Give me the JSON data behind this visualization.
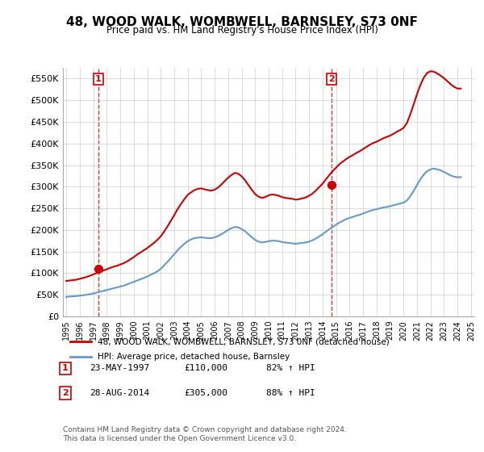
{
  "title": "48, WOOD WALK, WOMBWELL, BARNSLEY, S73 0NF",
  "subtitle": "Price paid vs. HM Land Registry's House Price Index (HPI)",
  "legend_line1": "48, WOOD WALK, WOMBWELL, BARNSLEY, S73 0NF (detached house)",
  "legend_line2": "HPI: Average price, detached house, Barnsley",
  "transaction1_label": "1",
  "transaction1_date": "23-MAY-1997",
  "transaction1_price": "£110,000",
  "transaction1_hpi": "82% ↑ HPI",
  "transaction2_label": "2",
  "transaction2_date": "28-AUG-2014",
  "transaction2_price": "£305,000",
  "transaction2_hpi": "88% ↑ HPI",
  "footer": "Contains HM Land Registry data © Crown copyright and database right 2024.\nThis data is licensed under the Open Government Licence v3.0.",
  "red_color": "#cc0000",
  "blue_color": "#6699cc",
  "marker_color": "#cc0000",
  "grid_color": "#cccccc",
  "background_color": "#ffffff",
  "ylim": [
    0,
    575000
  ],
  "yticks": [
    0,
    50000,
    100000,
    150000,
    200000,
    250000,
    300000,
    350000,
    400000,
    450000,
    500000,
    550000
  ],
  "ytick_labels": [
    "£0",
    "£50K",
    "£100K",
    "£150K",
    "£200K",
    "£250K",
    "£300K",
    "£350K",
    "£400K",
    "£450K",
    "£500K",
    "£550K"
  ],
  "hpi_years": [
    1995.0,
    1995.25,
    1995.5,
    1995.75,
    1996.0,
    1996.25,
    1996.5,
    1996.75,
    1997.0,
    1997.25,
    1997.5,
    1997.75,
    1998.0,
    1998.25,
    1998.5,
    1998.75,
    1999.0,
    1999.25,
    1999.5,
    1999.75,
    2000.0,
    2000.25,
    2000.5,
    2000.75,
    2001.0,
    2001.25,
    2001.5,
    2001.75,
    2002.0,
    2002.25,
    2002.5,
    2002.75,
    2003.0,
    2003.25,
    2003.5,
    2003.75,
    2004.0,
    2004.25,
    2004.5,
    2004.75,
    2005.0,
    2005.25,
    2005.5,
    2005.75,
    2006.0,
    2006.25,
    2006.5,
    2006.75,
    2007.0,
    2007.25,
    2007.5,
    2007.75,
    2008.0,
    2008.25,
    2008.5,
    2008.75,
    2009.0,
    2009.25,
    2009.5,
    2009.75,
    2010.0,
    2010.25,
    2010.5,
    2010.75,
    2011.0,
    2011.25,
    2011.5,
    2011.75,
    2012.0,
    2012.25,
    2012.5,
    2012.75,
    2013.0,
    2013.25,
    2013.5,
    2013.75,
    2014.0,
    2014.25,
    2014.5,
    2014.75,
    2015.0,
    2015.25,
    2015.5,
    2015.75,
    2016.0,
    2016.25,
    2016.5,
    2016.75,
    2017.0,
    2017.25,
    2017.5,
    2017.75,
    2018.0,
    2018.25,
    2018.5,
    2018.75,
    2019.0,
    2019.25,
    2019.5,
    2019.75,
    2020.0,
    2020.25,
    2020.5,
    2020.75,
    2021.0,
    2021.25,
    2021.5,
    2021.75,
    2022.0,
    2022.25,
    2022.5,
    2022.75,
    2023.0,
    2023.25,
    2023.5,
    2023.75,
    2024.0,
    2024.25
  ],
  "hpi_values": [
    45000,
    46000,
    46500,
    47000,
    48000,
    49000,
    50000,
    51500,
    53000,
    55000,
    57000,
    59000,
    61000,
    63000,
    65000,
    67000,
    69000,
    71000,
    74000,
    77000,
    80000,
    83000,
    86000,
    89000,
    92000,
    96000,
    100000,
    104000,
    110000,
    118000,
    126000,
    135000,
    144000,
    153000,
    161000,
    168000,
    174000,
    178000,
    181000,
    182000,
    183000,
    182000,
    181000,
    181000,
    183000,
    186000,
    190000,
    195000,
    200000,
    204000,
    207000,
    206000,
    202000,
    197000,
    190000,
    183000,
    177000,
    173000,
    171000,
    172000,
    174000,
    175000,
    175000,
    174000,
    172000,
    171000,
    170000,
    169000,
    168000,
    169000,
    170000,
    171000,
    173000,
    176000,
    180000,
    185000,
    190000,
    196000,
    202000,
    207000,
    212000,
    217000,
    221000,
    225000,
    228000,
    230000,
    233000,
    235000,
    238000,
    241000,
    244000,
    246000,
    248000,
    250000,
    252000,
    253000,
    255000,
    257000,
    259000,
    261000,
    263000,
    268000,
    278000,
    290000,
    304000,
    317000,
    328000,
    336000,
    340000,
    342000,
    340000,
    338000,
    334000,
    330000,
    326000,
    323000,
    322000,
    322000
  ],
  "red_years": [
    1995.0,
    1995.25,
    1995.5,
    1995.75,
    1996.0,
    1996.25,
    1996.5,
    1996.75,
    1997.0,
    1997.25,
    1997.5,
    1997.75,
    1998.0,
    1998.25,
    1998.5,
    1998.75,
    1999.0,
    1999.25,
    1999.5,
    1999.75,
    2000.0,
    2000.25,
    2000.5,
    2000.75,
    2001.0,
    2001.25,
    2001.5,
    2001.75,
    2002.0,
    2002.25,
    2002.5,
    2002.75,
    2003.0,
    2003.25,
    2003.5,
    2003.75,
    2004.0,
    2004.25,
    2004.5,
    2004.75,
    2005.0,
    2005.25,
    2005.5,
    2005.75,
    2006.0,
    2006.25,
    2006.5,
    2006.75,
    2007.0,
    2007.25,
    2007.5,
    2007.75,
    2008.0,
    2008.25,
    2008.5,
    2008.75,
    2009.0,
    2009.25,
    2009.5,
    2009.75,
    2010.0,
    2010.25,
    2010.5,
    2010.75,
    2011.0,
    2011.25,
    2011.5,
    2011.75,
    2012.0,
    2012.25,
    2012.5,
    2012.75,
    2013.0,
    2013.25,
    2013.5,
    2013.75,
    2014.0,
    2014.25,
    2014.5,
    2014.75,
    2015.0,
    2015.25,
    2015.5,
    2015.75,
    2016.0,
    2016.25,
    2016.5,
    2016.75,
    2017.0,
    2017.25,
    2017.5,
    2017.75,
    2018.0,
    2018.25,
    2018.5,
    2018.75,
    2019.0,
    2019.25,
    2019.5,
    2019.75,
    2020.0,
    2020.25,
    2020.5,
    2020.75,
    2021.0,
    2021.25,
    2021.5,
    2021.75,
    2022.0,
    2022.25,
    2022.5,
    2022.75,
    2023.0,
    2023.25,
    2023.5,
    2023.75,
    2024.0,
    2024.25
  ],
  "red_values": [
    82000,
    83000,
    84000,
    85000,
    87000,
    89000,
    91000,
    94000,
    97000,
    100000,
    103000,
    106000,
    109000,
    112000,
    115000,
    117000,
    120000,
    123000,
    127000,
    132000,
    137000,
    143000,
    148000,
    153000,
    158000,
    164000,
    170000,
    177000,
    185000,
    196000,
    208000,
    221000,
    234000,
    248000,
    260000,
    271000,
    281000,
    287000,
    292000,
    295000,
    296000,
    294000,
    292000,
    291000,
    293000,
    298000,
    305000,
    313000,
    321000,
    327000,
    332000,
    330000,
    324000,
    315000,
    304000,
    293000,
    283000,
    277000,
    274000,
    276000,
    280000,
    282000,
    281000,
    279000,
    276000,
    274000,
    273000,
    272000,
    270000,
    271000,
    273000,
    275000,
    279000,
    284000,
    291000,
    299000,
    307000,
    317000,
    327000,
    336000,
    344000,
    352000,
    358000,
    364000,
    369000,
    373000,
    378000,
    382000,
    387000,
    392000,
    397000,
    401000,
    404000,
    408000,
    412000,
    415000,
    418000,
    422000,
    427000,
    431000,
    436000,
    447000,
    467000,
    490000,
    514000,
    535000,
    552000,
    563000,
    567000,
    566000,
    562000,
    557000,
    551000,
    544000,
    537000,
    531000,
    527000,
    527000
  ],
  "sale1_x": 1997.38,
  "sale1_y": 110000,
  "sale2_x": 2014.65,
  "sale2_y": 305000,
  "xmin": 1994.75,
  "xmax": 2025.25,
  "xticks": [
    1995,
    1996,
    1997,
    1998,
    1999,
    2000,
    2001,
    2002,
    2003,
    2004,
    2005,
    2006,
    2007,
    2008,
    2009,
    2010,
    2011,
    2012,
    2013,
    2014,
    2015,
    2016,
    2017,
    2018,
    2019,
    2020,
    2021,
    2022,
    2023,
    2024,
    2025
  ]
}
